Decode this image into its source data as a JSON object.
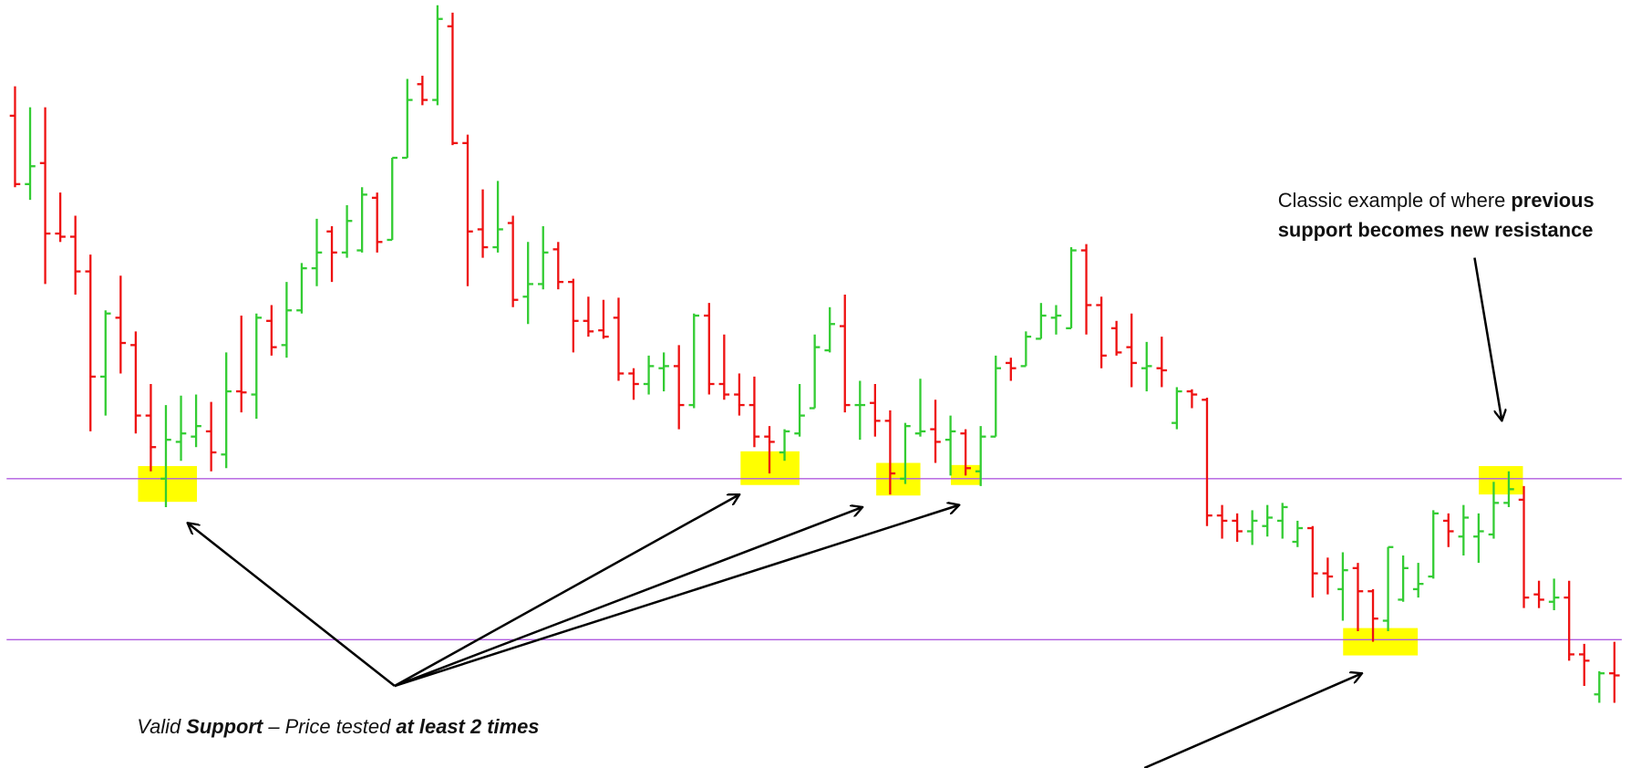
{
  "chart_data": {
    "type": "ohlc",
    "open": [
      630,
      565,
      585,
      518,
      515,
      482,
      382,
      438,
      412,
      345,
      285,
      320,
      325,
      330,
      308,
      368,
      365,
      435,
      412,
      445,
      485,
      520,
      500,
      502,
      552,
      512,
      590,
      660,
      645,
      715,
      604,
      522,
      505,
      528,
      458,
      470,
      503,
      472,
      435,
      426,
      438,
      385,
      375,
      390,
      392,
      355,
      440,
      375,
      365,
      355,
      325,
      310,
      328,
      352,
      407,
      430,
      355,
      357,
      340,
      285,
      328,
      332,
      322,
      328,
      292,
      325,
      395,
      392,
      418,
      438,
      428,
      502,
      450,
      428,
      410,
      390,
      390,
      338,
      368,
      360,
      250,
      245,
      235,
      240,
      245,
      225,
      238,
      195,
      180,
      200,
      178,
      150,
      170,
      180,
      192,
      245,
      230,
      230,
      232,
      262,
      265,
      175,
      168,
      172,
      118,
      80,
      100
    ],
    "high": [
      658,
      638,
      638,
      557,
      535,
      498,
      445,
      478,
      425,
      375,
      355,
      364,
      365,
      358,
      405,
      440,
      442,
      450,
      472,
      490,
      532,
      525,
      545,
      562,
      557,
      590,
      665,
      668,
      735,
      728,
      612,
      560,
      568,
      535,
      510,
      525,
      510,
      475,
      458,
      455,
      457,
      390,
      402,
      405,
      412,
      442,
      452,
      422,
      385,
      382,
      335,
      332,
      375,
      422,
      448,
      460,
      378,
      375,
      350,
      338,
      380,
      360,
      345,
      332,
      335,
      402,
      400,
      425,
      452,
      450,
      505,
      508,
      458,
      435,
      442,
      415,
      420,
      372,
      370,
      362,
      260,
      252,
      255,
      260,
      262,
      245,
      240,
      210,
      215,
      205,
      180,
      220,
      212,
      205,
      255,
      252,
      260,
      252,
      282,
      292,
      278,
      188,
      190,
      188,
      128,
      102,
      130
    ],
    "low": [
      562,
      550,
      470,
      510,
      460,
      330,
      345,
      385,
      328,
      292,
      258,
      302,
      315,
      292,
      295,
      348,
      342,
      402,
      400,
      442,
      468,
      472,
      495,
      500,
      500,
      512,
      590,
      640,
      640,
      602,
      468,
      495,
      500,
      448,
      432,
      465,
      465,
      405,
      420,
      418,
      378,
      360,
      365,
      368,
      332,
      352,
      365,
      360,
      345,
      315,
      290,
      302,
      325,
      352,
      405,
      348,
      322,
      325,
      270,
      280,
      325,
      300,
      288,
      288,
      278,
      325,
      378,
      392,
      418,
      422,
      428,
      422,
      390,
      402,
      372,
      368,
      372,
      332,
      352,
      240,
      228,
      225,
      222,
      230,
      228,
      220,
      172,
      175,
      150,
      140,
      130,
      140,
      168,
      172,
      190,
      220,
      212,
      205,
      228,
      258,
      162,
      162,
      160,
      112,
      88,
      72,
      72
    ],
    "close": [
      565,
      582,
      518,
      515,
      482,
      382,
      442,
      414,
      345,
      315,
      322,
      328,
      335,
      310,
      368,
      367,
      438,
      410,
      445,
      485,
      500,
      500,
      530,
      555,
      510,
      590,
      645,
      645,
      722,
      604,
      520,
      505,
      522,
      455,
      470,
      500,
      472,
      435,
      425,
      420,
      385,
      375,
      392,
      392,
      355,
      440,
      375,
      365,
      355,
      325,
      320,
      330,
      345,
      410,
      432,
      355,
      355,
      340,
      290,
      335,
      330,
      320,
      330,
      295,
      325,
      390,
      390,
      420,
      440,
      440,
      502,
      450,
      402,
      405,
      395,
      392,
      388,
      368,
      365,
      250,
      245,
      235,
      245,
      248,
      258,
      238,
      195,
      192,
      198,
      178,
      152,
      220,
      200,
      185,
      252,
      235,
      248,
      235,
      262,
      275,
      172,
      170,
      172,
      118,
      112,
      100,
      98
    ],
    "up_color": "#33cc33",
    "down_color": "#ee1111",
    "ylim": [
      10,
      740
    ],
    "support_levels": [
      285,
      132
    ],
    "support_color": "#b05ce0",
    "annotations": {
      "resistance": {
        "line1": "Classic example of where ",
        "line1_bold": "previous",
        "line2_bold": "support becomes new resistance"
      },
      "support": {
        "part1": "Valid ",
        "part2": "Support",
        "part3": " – Price tested ",
        "part4": "at least 2 times"
      }
    }
  }
}
